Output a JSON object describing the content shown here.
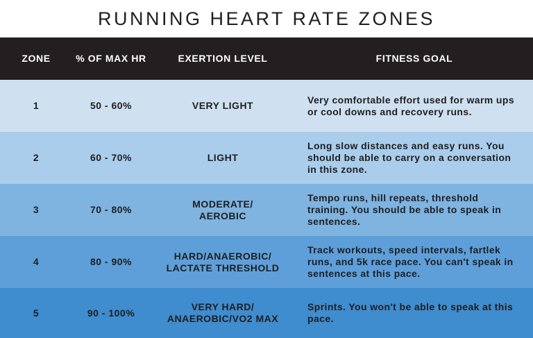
{
  "title": "RUNNING HEART RATE ZONES",
  "colors": {
    "header_bg": "#231f20",
    "row_1": "#cfe0f1",
    "row_2": "#abcdec",
    "row_3": "#7fb3e0",
    "row_4": "#5e9fda",
    "row_5": "#3f8ccf"
  },
  "headers": {
    "zone": "ZONE",
    "max_hr": "% OF MAX HR",
    "exertion": "EXERTION LEVEL",
    "goal": "FITNESS GOAL"
  },
  "rows": [
    {
      "zone": "1",
      "max_hr": "50 - 60%",
      "exertion": "VERY LIGHT",
      "goal": "Very comfortable effort used for warm ups or cool downs and recovery runs."
    },
    {
      "zone": "2",
      "max_hr": "60 - 70%",
      "exertion": "LIGHT",
      "goal": "Long slow distances and easy runs. You should be able to carry on a conversation in this zone."
    },
    {
      "zone": "3",
      "max_hr": "70 - 80%",
      "exertion": "MODERATE/\nAEROBIC",
      "goal": "Tempo runs, hill repeats, threshold training. You should be able to speak in sentences."
    },
    {
      "zone": "4",
      "max_hr": "80 - 90%",
      "exertion": "HARD/ANAEROBIC/\nLACTATE THRESHOLD",
      "goal": "Track workouts, speed intervals, fartlek runs, and 5k race pace. You can't speak in sentences at this pace."
    },
    {
      "zone": "5",
      "max_hr": "90 - 100%",
      "exertion": "VERY HARD/\nANAEROBIC/VO2 MAX",
      "goal": "Sprints. You won't be able to speak at this pace."
    }
  ]
}
